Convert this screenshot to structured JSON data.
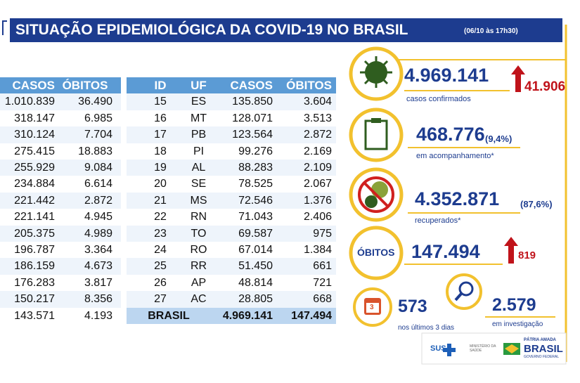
{
  "header": {
    "title": "SITUAÇÃO EPIDEMIOLÓGICA DA COVID-19 NO BRASIL",
    "timestamp": "(06/10 às 17h30)"
  },
  "left_table": {
    "columns": [
      "CASOS",
      "ÓBITOS"
    ],
    "rows": [
      [
        "1.010.839",
        "36.490"
      ],
      [
        "318.147",
        "6.985"
      ],
      [
        "310.124",
        "7.704"
      ],
      [
        "275.415",
        "18.883"
      ],
      [
        "255.929",
        "9.084"
      ],
      [
        "234.884",
        "6.614"
      ],
      [
        "221.442",
        "2.872"
      ],
      [
        "221.141",
        "4.945"
      ],
      [
        "205.375",
        "4.989"
      ],
      [
        "196.787",
        "3.364"
      ],
      [
        "186.159",
        "4.673"
      ],
      [
        "176.283",
        "3.817"
      ],
      [
        "150.217",
        "8.356"
      ],
      [
        "143.571",
        "4.193"
      ]
    ]
  },
  "right_table": {
    "columns": [
      "ID",
      "UF",
      "CASOS",
      "ÓBITOS"
    ],
    "rows": [
      [
        "15",
        "ES",
        "135.850",
        "3.604"
      ],
      [
        "16",
        "MT",
        "128.071",
        "3.513"
      ],
      [
        "17",
        "PB",
        "123.564",
        "2.872"
      ],
      [
        "18",
        "PI",
        "99.276",
        "2.169"
      ],
      [
        "19",
        "AL",
        "88.283",
        "2.109"
      ],
      [
        "20",
        "SE",
        "78.525",
        "2.067"
      ],
      [
        "21",
        "MS",
        "72.546",
        "1.376"
      ],
      [
        "22",
        "RN",
        "71.043",
        "2.406"
      ],
      [
        "23",
        "TO",
        "69.587",
        "975"
      ],
      [
        "24",
        "RO",
        "67.014",
        "1.384"
      ],
      [
        "25",
        "RR",
        "51.450",
        "661"
      ],
      [
        "26",
        "AP",
        "48.814",
        "721"
      ],
      [
        "27",
        "AC",
        "28.805",
        "668"
      ]
    ],
    "total": [
      "BRASIL",
      "4.969.141",
      "147.494"
    ]
  },
  "stats": {
    "confirmed": {
      "value": "4.969.141",
      "increase": "41.906",
      "label": "casos confirmados"
    },
    "monitoring": {
      "value": "468.776",
      "percent": "(9,4%)",
      "label": "em acompanhamento*"
    },
    "recovered": {
      "value": "4.352.871",
      "percent": "(87,6%)",
      "label": "recuperados*"
    },
    "deaths": {
      "label": "ÓBITOS",
      "value": "147.494",
      "increase": "819"
    },
    "recent": {
      "icon": "3",
      "value": "573",
      "label": "nos últimos 3 dias"
    },
    "investigation": {
      "value": "2.579",
      "label": "em investigação"
    }
  },
  "logos": {
    "sus": "SUS",
    "ministry": "MINISTÉRIO DA SAÚDE",
    "slogan": "PÁTRIA AMADA",
    "country": "BRASIL",
    "government": "GOVERNO FEDERAL"
  }
}
